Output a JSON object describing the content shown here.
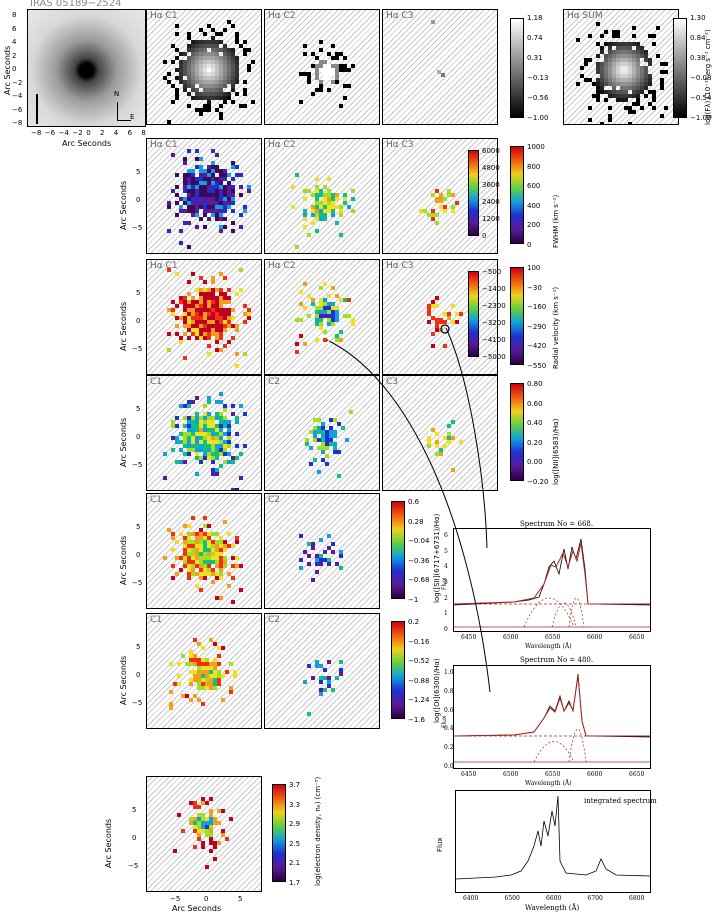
{
  "figure": {
    "object_title": "IRAS 05189−2524",
    "y_axis_label": "Arc Seconds",
    "x_axis_label": "Arc Seconds",
    "compass": {
      "north": "N",
      "east": "E"
    },
    "image_ticks": [
      "8",
      "6",
      "4",
      "2",
      "0",
      "−2",
      "−4",
      "−6",
      "−8"
    ],
    "image_xticks": [
      "−8",
      "−6",
      "−4",
      "−2",
      "0",
      "2",
      "4",
      "6",
      "8"
    ],
    "map_ticks": [
      "5",
      "0",
      "−5"
    ],
    "map_xticks": [
      "−5",
      "0",
      "5"
    ]
  },
  "rows": [
    {
      "panels": [
        "Hα C1",
        "Hα C2",
        "Hα C3",
        "Hα SUM"
      ],
      "colorbar": {
        "ticks": [
          "1.18",
          "0.74",
          "0.31",
          "−0.13",
          "−0.56",
          "−1.00"
        ],
        "label": ""
      },
      "colorbar2": {
        "ticks": [
          "1.30",
          "0.84",
          "0.38",
          "−0.08",
          "−0.54",
          "−1.00"
        ],
        "label": "log(Fλ) (10⁻¹⁶ erg s⁻¹ cm⁻²)"
      }
    },
    {
      "panels": [
        "Hα C1",
        "Hα C2",
        "Hα C3"
      ],
      "colorbar": {
        "ticks": [
          "1000",
          "800",
          "600",
          "400",
          "200",
          "0"
        ],
        "label": "FWHM (km s⁻¹)"
      },
      "inner_colorbar": {
        "ticks": [
          "6000",
          "4800",
          "3600",
          "2400",
          "1200",
          "0"
        ]
      }
    },
    {
      "panels": [
        "Hα C1",
        "Hα C2",
        "Hα C3"
      ],
      "colorbar": {
        "ticks": [
          "100",
          "−30",
          "−160",
          "−290",
          "−420",
          "−550"
        ],
        "label": "Radial velocity (km s⁻¹)"
      },
      "inner_colorbar": {
        "ticks": [
          "−500",
          "−1400",
          "−2300",
          "−3200",
          "−4100",
          "−5000"
        ]
      }
    },
    {
      "panels": [
        "C1",
        "C2",
        "C3"
      ],
      "colorbar": {
        "ticks": [
          "0.80",
          "0.60",
          "0.40",
          "0.20",
          "0.00",
          "−0.20"
        ],
        "label": "log([NII](6583)/Hα)"
      }
    },
    {
      "panels": [
        "C1",
        "C2"
      ],
      "colorbar": {
        "ticks": [
          "0.6",
          "0.28",
          "−0.04",
          "−0.36",
          "−0.68",
          "−1"
        ],
        "label": "log([SII](6717+6731)/Hα)"
      }
    },
    {
      "panels": [
        "C1",
        "C2"
      ],
      "colorbar": {
        "ticks": [
          "0.2",
          "−0.16",
          "−0.52",
          "−0.88",
          "−1.24",
          "−1.6"
        ],
        "label": "log([OI](6300)/Hα)"
      }
    },
    {
      "panels": [
        ""
      ],
      "colorbar": {
        "ticks": [
          "3.7",
          "3.3",
          "2.9",
          "2.5",
          "2.1",
          "1.7"
        ],
        "label": "log(electron density, nₑ) (cm⁻³)"
      }
    }
  ],
  "spectra": [
    {
      "title": "Spectrum No = 668.",
      "ylabel": "Flux",
      "xlabel": "Wavelength (Å)",
      "xticks": [
        "6450",
        "6500",
        "6550",
        "6600",
        "6650"
      ],
      "yticks": [
        "0",
        "1",
        "2",
        "3",
        "4",
        "5",
        "6"
      ]
    },
    {
      "title": "Spectrum No = 480.",
      "ylabel": "Flux",
      "xlabel": "Wavelength (Å)",
      "xticks": [
        "6450",
        "6500",
        "6550",
        "6600",
        "6650"
      ],
      "yticks": [
        "0.0",
        "0.2",
        "0.4",
        "0.6",
        "0.8",
        "1.0"
      ]
    },
    {
      "title": "integrated spectrum",
      "ylabel": "Flux",
      "xlabel": "Wavelength (Å)",
      "xticks": [
        "6400",
        "6500",
        "6600",
        "6700",
        "6800"
      ],
      "yticks": []
    }
  ],
  "colors": {
    "line": "#b22222",
    "frame": "#000000",
    "hatch": "#c9c9c9"
  }
}
